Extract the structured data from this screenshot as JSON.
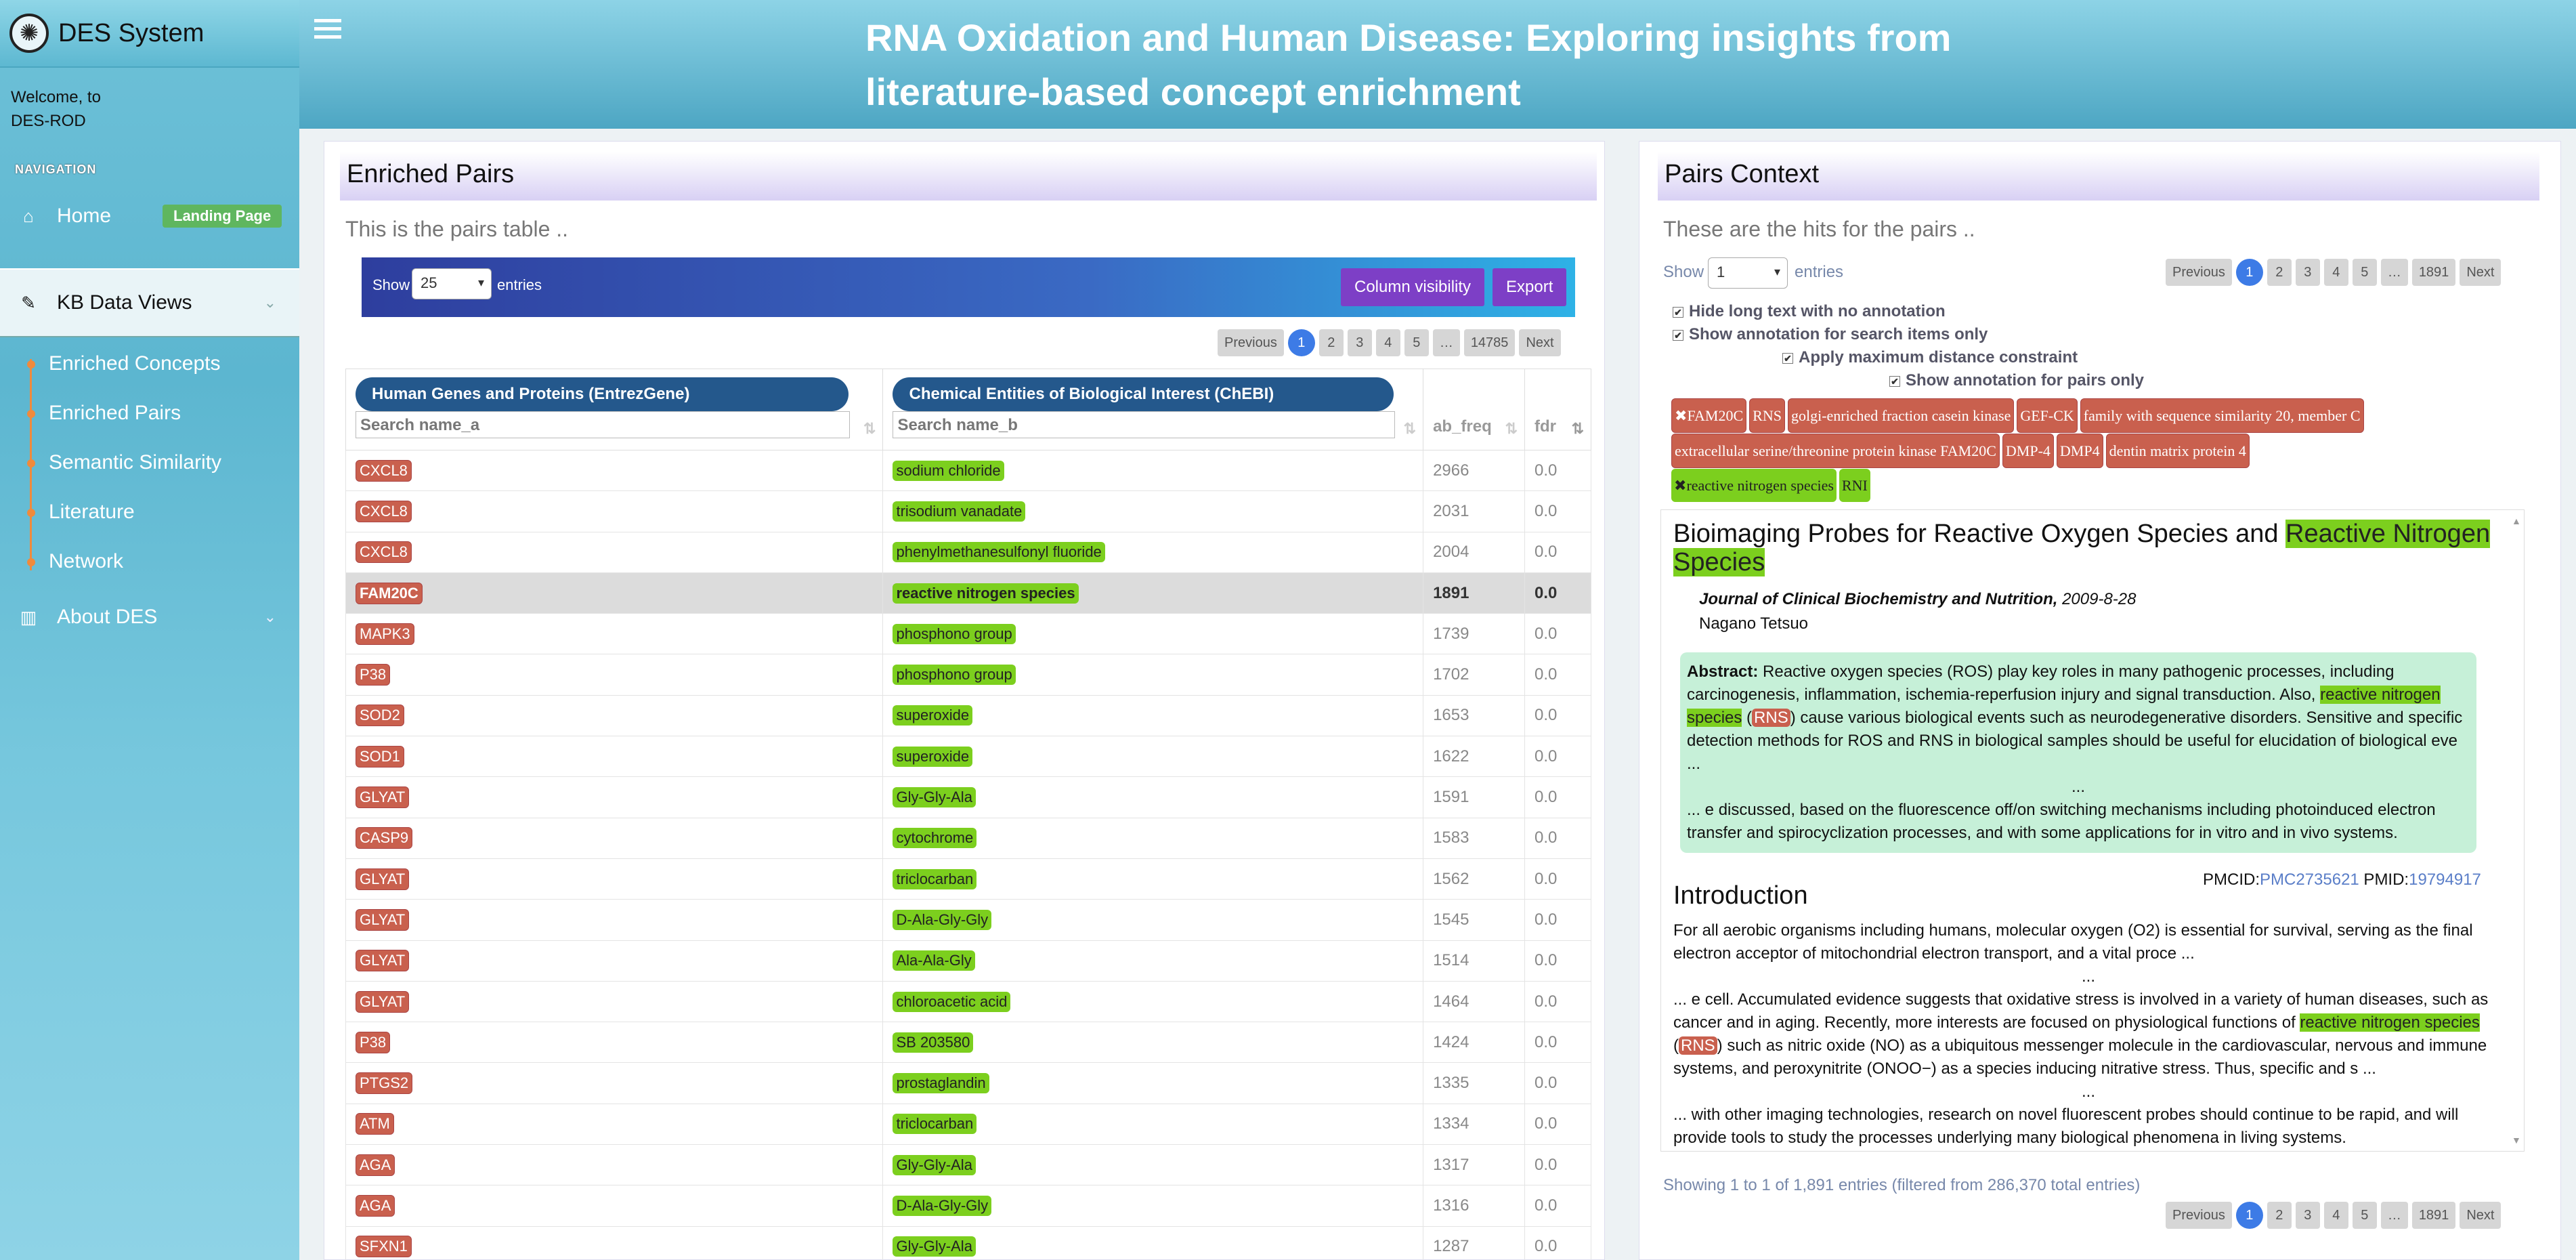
{
  "app": {
    "name": "DES System",
    "welcome": "Welcome, to",
    "user": "DES-ROD",
    "title": "RNA Oxidation and Human Disease: Exploring insights from literature-based concept enrichment"
  },
  "nav": {
    "heading": "NAVIGATION",
    "home": "Home",
    "home_badge": "Landing Page",
    "kb": "KB Data Views",
    "sub": [
      "Enriched Concepts",
      "Enriched Pairs",
      "Semantic Similarity",
      "Literature",
      "Network"
    ],
    "about": "About DES"
  },
  "left": {
    "title": "Enriched Pairs",
    "subtitle": "This is the pairs table ..",
    "show": "Show",
    "entries_value": "25",
    "entries": "entries",
    "col_vis": "Column visibility",
    "export": "Export",
    "pager": [
      "Previous",
      "1",
      "2",
      "3",
      "4",
      "5",
      "…",
      "14785",
      "Next"
    ],
    "columns": {
      "a": "Human Genes and Proteins (EntrezGene)",
      "a_search": "Search name_a",
      "b": "Chemical Entities of Biological Interest (ChEBI)",
      "b_search": "Search name_b",
      "freq": "ab_freq",
      "fdr": "fdr"
    },
    "rows": [
      {
        "a": "CXCL8",
        "b": "sodium chloride",
        "freq": "2966",
        "fdr": "0.0"
      },
      {
        "a": "CXCL8",
        "b": "trisodium vanadate",
        "freq": "2031",
        "fdr": "0.0"
      },
      {
        "a": "CXCL8",
        "b": "phenylmethanesulfonyl fluoride",
        "freq": "2004",
        "fdr": "0.0"
      },
      {
        "a": "FAM20C",
        "b": "reactive nitrogen species",
        "freq": "1891",
        "fdr": "0.0"
      },
      {
        "a": "MAPK3",
        "b": "phosphono group",
        "freq": "1739",
        "fdr": "0.0"
      },
      {
        "a": "P38",
        "b": "phosphono group",
        "freq": "1702",
        "fdr": "0.0"
      },
      {
        "a": "SOD2",
        "b": "superoxide",
        "freq": "1653",
        "fdr": "0.0"
      },
      {
        "a": "SOD1",
        "b": "superoxide",
        "freq": "1622",
        "fdr": "0.0"
      },
      {
        "a": "GLYAT",
        "b": "Gly-Gly-Ala",
        "freq": "1591",
        "fdr": "0.0"
      },
      {
        "a": "CASP9",
        "b": "cytochrome",
        "freq": "1583",
        "fdr": "0.0"
      },
      {
        "a": "GLYAT",
        "b": "triclocarban",
        "freq": "1562",
        "fdr": "0.0"
      },
      {
        "a": "GLYAT",
        "b": "D-Ala-Gly-Gly",
        "freq": "1545",
        "fdr": "0.0"
      },
      {
        "a": "GLYAT",
        "b": "Ala-Ala-Gly",
        "freq": "1514",
        "fdr": "0.0"
      },
      {
        "a": "GLYAT",
        "b": "chloroacetic acid",
        "freq": "1464",
        "fdr": "0.0"
      },
      {
        "a": "P38",
        "b": "SB 203580",
        "freq": "1424",
        "fdr": "0.0"
      },
      {
        "a": "PTGS2",
        "b": "prostaglandin",
        "freq": "1335",
        "fdr": "0.0"
      },
      {
        "a": "ATM",
        "b": "triclocarban",
        "freq": "1334",
        "fdr": "0.0"
      },
      {
        "a": "AGA",
        "b": "Gly-Gly-Ala",
        "freq": "1317",
        "fdr": "0.0"
      },
      {
        "a": "AGA",
        "b": "D-Ala-Gly-Gly",
        "freq": "1316",
        "fdr": "0.0"
      },
      {
        "a": "SFXN1",
        "b": "Gly-Gly-Ala",
        "freq": "1287",
        "fdr": "0.0"
      }
    ]
  },
  "right": {
    "title": "Pairs Context",
    "subtitle": "These are the hits for the pairs ..",
    "show": "Show",
    "entries_value": "1",
    "entries": "entries",
    "pager": [
      "Previous",
      "1",
      "2",
      "3",
      "4",
      "5",
      "…",
      "1891",
      "Next"
    ],
    "checks": [
      "Hide long text with no annotation",
      "Show annotation for search items only",
      "Apply maximum distance constraint",
      "Show annotation for pairs only"
    ],
    "tags_red": [
      "FAM20C",
      "RNS",
      "golgi-enriched fraction casein kinase",
      "GEF-CK",
      "family with sequence similarity 20, member C",
      "extracellular serine/threonine protein kinase FAM20C",
      "DMP-4",
      "DMP4",
      "dentin matrix protein 4"
    ],
    "tags_green": [
      "reactive nitrogen species",
      "RNI"
    ],
    "article": {
      "title_pre": "Bioimaging Probes for Reactive Oxygen Species and ",
      "title_hl": "Reactive Nitrogen Species",
      "journal": "Journal of Clinical Biochemistry and Nutrition,",
      "date": " 2009-8-28",
      "author": "Nagano Tetsuo",
      "abstract_label": "Abstract:",
      "abstract_1": " Reactive oxygen species (ROS) play key roles in many pathogenic processes, including carcinogenesis, inflammation, ischemia-reperfusion injury and signal transduction. Also, ",
      "abstract_hl": "reactive nitrogen species",
      "abstract_2": " (",
      "abstract_rns": "RNS",
      "abstract_3": ") cause various biological events such as neurodegenerative disorders. Sensitive and specific detection methods for ROS and RNS in biological samples should be useful for elucidation of biological eve ...",
      "ellipsis": "...",
      "abstract_4": "... e discussed, based on the fluorescence off/on switching mechanisms including photoinduced electron transfer and spirocyclization processes, and with some applications for in vitro and in vivo systems.",
      "pmcid_label": "PMCID:",
      "pmcid": "PMC2735621",
      "pmid_label": " PMID:",
      "pmid": "19794917",
      "intro_heading": "Introduction",
      "intro_1": "For all aerobic organisms including humans, molecular oxygen (O2) is essential for survival, serving as the final electron acceptor of mitochondrial electron transport, and a vital proce ...",
      "intro_2": "... e cell. Accumulated evidence suggests that oxidative stress is involved in a variety of human diseases, such as cancer and in aging. Recently, more interests are focused on physiological functions of ",
      "intro_hl": "reactive nitrogen species",
      "intro_3": " (",
      "intro_rns": "RNS",
      "intro_4": ") such as nitric oxide (NO) as a ubiquitous messenger molecule in the cardiovascular, nervous and immune systems, and peroxynitrite (ONOO−) as a species inducing nitrative stress. Thus, specific and s ...",
      "intro_5": "... with other imaging technologies, research on novel fluorescent probes should continue to be rapid, and will provide tools to study the processes underlying many biological phenomena in living systems."
    },
    "info": "Showing 1 to 1 of 1,891 entries (filtered from 286,370 total entries)"
  },
  "colors": {
    "sidebar": "#6ec1d8",
    "header": "#4da6c3",
    "accent_purple": "#7d3fc6",
    "gene_tag": "#c9604e",
    "chem_tag": "#7ccf1e",
    "page_active": "#3d7be6"
  }
}
